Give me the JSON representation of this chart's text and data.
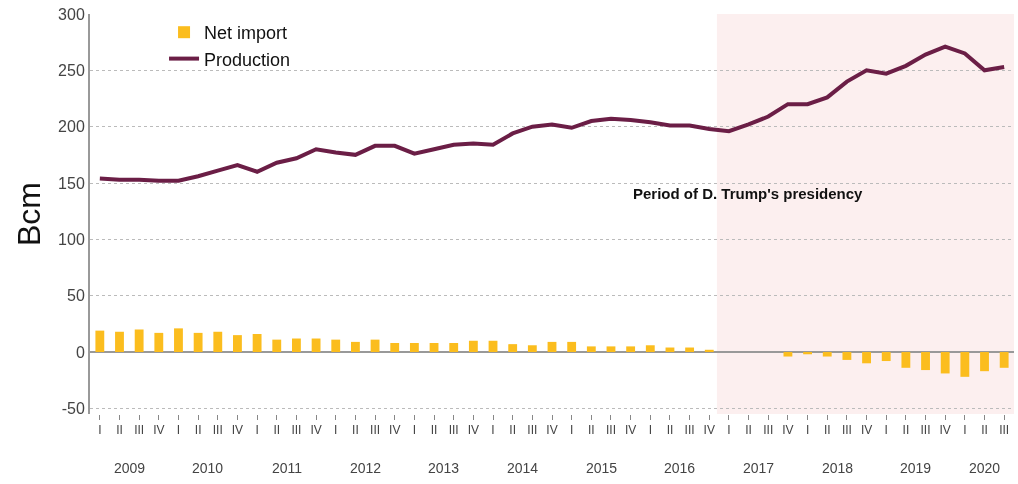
{
  "chart_data": {
    "type": "bar",
    "ylabel": "Bcm",
    "categories": [
      "I",
      "II",
      "III",
      "IV",
      "I",
      "II",
      "III",
      "IV",
      "I",
      "II",
      "III",
      "IV",
      "I",
      "II",
      "III",
      "IV",
      "I",
      "II",
      "III",
      "IV",
      "I",
      "II",
      "III",
      "IV",
      "I",
      "II",
      "III",
      "IV",
      "I",
      "II",
      "III",
      "IV",
      "I",
      "II",
      "III",
      "IV",
      "I",
      "II",
      "III",
      "IV",
      "I",
      "II",
      "III",
      "IV",
      "I",
      "II",
      "III"
    ],
    "series": [
      {
        "name": "Net import",
        "color": "#fbbd1e",
        "values": [
          19,
          18,
          20,
          17,
          21,
          17,
          18,
          15,
          16,
          11,
          12,
          12,
          11,
          9,
          11,
          8,
          8,
          8,
          8,
          10,
          10,
          7,
          6,
          9,
          9,
          5,
          5,
          5,
          6,
          4,
          4,
          2,
          0,
          0,
          0,
          -4,
          -2,
          -4,
          -7,
          -10,
          -8,
          -14,
          -16,
          -19,
          -22,
          -17,
          -14
        ]
      },
      {
        "name": "Production",
        "type": "line",
        "color": "#6b1e46",
        "values": [
          154,
          153,
          153,
          152,
          152,
          156,
          161,
          166,
          160,
          168,
          172,
          180,
          177,
          175,
          183,
          183,
          176,
          180,
          184,
          185,
          184,
          194,
          200,
          202,
          199,
          205,
          207,
          206,
          204,
          201,
          201,
          198,
          196,
          202,
          209,
          220,
          220,
          226,
          240,
          250,
          247,
          254,
          264,
          271,
          265,
          250,
          253
        ]
      }
    ],
    "ylim": [
      -55,
      300
    ],
    "yticks": [
      -50,
      0,
      50,
      100,
      150,
      200,
      250,
      300
    ],
    "annotations": [
      "2009",
      "2010",
      "2011",
      "2012",
      "2013",
      "2014",
      "2015",
      "2016",
      "2017",
      "2018",
      "2019",
      "2020",
      "Period of D. Trump's presidency"
    ],
    "grid": "y",
    "legend": "top"
  }
}
